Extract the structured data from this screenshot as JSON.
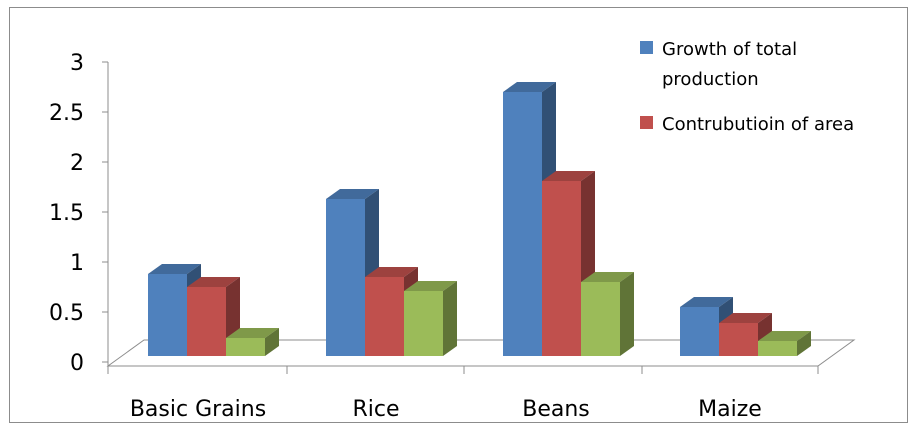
{
  "chart_data": {
    "type": "bar",
    "style": "3d-clustered-column",
    "title": "",
    "xlabel": "",
    "ylabel": "",
    "categories": [
      "Basic Grains",
      "Rice",
      "Beans",
      "Maize"
    ],
    "series": [
      {
        "name": "Growth of total production",
        "values": [
          0.9,
          1.65,
          2.72,
          0.57
        ],
        "color": "#4F81BD"
      },
      {
        "name": "Contrubutioin of area",
        "values": [
          0.77,
          0.87,
          1.83,
          0.41
        ],
        "color": "#C0504D"
      },
      {
        "name": "",
        "values": [
          0.26,
          0.73,
          0.82,
          0.23
        ],
        "color": "#9BBB59"
      }
    ],
    "ylim": [
      0,
      3
    ],
    "yticks": [
      "0",
      "0.5",
      "1",
      "1.5",
      "2",
      "2.5",
      "3"
    ],
    "grid": false,
    "legend_position": "top-right",
    "legend_entries": [
      "Growth of total production",
      "Contrubutioin of area"
    ]
  }
}
